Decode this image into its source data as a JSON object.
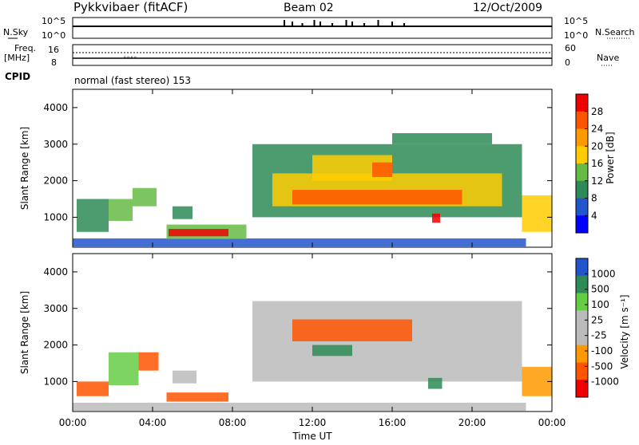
{
  "header": {
    "station": "Pykkvibaer (fitACF)",
    "beam": "Beam 02",
    "date": "12/Oct/2009"
  },
  "strip_labels": {
    "nsky": "N.Sky",
    "nsearch": "N.Search",
    "freq_line1": "Freq.",
    "freq_line2": "[MHz]",
    "nave": "Nave",
    "cpid": "CPID",
    "cpid_text": "normal (fast stereo) 153"
  },
  "noise_strip": {
    "left_ticks": [
      "10^5",
      "10^0"
    ],
    "right_ticks": [
      "10^5",
      "10^0"
    ],
    "spike_hours": [
      10.6,
      11.0,
      11.5,
      12.1,
      12.4,
      13.0,
      13.7,
      14.0,
      14.6,
      15.3,
      16.0,
      16.6
    ]
  },
  "freq_strip": {
    "left_ticks": [
      "16",
      "8"
    ],
    "right_ticks": [
      "60",
      "0"
    ]
  },
  "colors": {
    "axis": "#000000",
    "power_scale": [
      "#0000ff",
      "#2255cc",
      "#2e8b57",
      "#66bb44",
      "#ffcc00",
      "#ff9900",
      "#ff5500",
      "#ee0000"
    ],
    "velocity_scale": [
      "#ee0000",
      "#ff5500",
      "#ff9900",
      "#bbbbbb",
      "#bbbbbb",
      "#66cc44",
      "#2e8b57",
      "#2255cc"
    ]
  },
  "chart_data": [
    {
      "type": "heatmap",
      "panel": "power",
      "ylabel": "Slant Range [km]",
      "ylim": [
        180,
        4500
      ],
      "y_ticks": [
        "4000",
        "3000",
        "2000",
        "1000"
      ],
      "x_ticks": [
        "00:00",
        "04:00",
        "08:00",
        "12:00",
        "16:00",
        "20:00",
        "00:00"
      ],
      "colorbar_label": "Power [dB]",
      "colorbar_ticks": [
        "28",
        "24",
        "20",
        "16",
        "12",
        "8",
        "4"
      ],
      "colorbar_range": [
        0,
        32
      ],
      "echo_regions": [
        {
          "t0": 0.0,
          "t1": 22.7,
          "r0": 200,
          "r1": 420,
          "value": 5
        },
        {
          "t0": 0.2,
          "t1": 1.8,
          "r0": 600,
          "r1": 1500,
          "value": 9
        },
        {
          "t0": 1.8,
          "t1": 3.0,
          "r0": 900,
          "r1": 1500,
          "value": 14
        },
        {
          "t0": 3.0,
          "t1": 4.2,
          "r0": 1300,
          "r1": 1800,
          "value": 12
        },
        {
          "t0": 5.0,
          "t1": 6.0,
          "r0": 950,
          "r1": 1300,
          "value": 9
        },
        {
          "t0": 4.7,
          "t1": 8.7,
          "r0": 400,
          "r1": 800,
          "value": 14
        },
        {
          "t0": 4.8,
          "t1": 7.8,
          "r0": 480,
          "r1": 680,
          "value": 28
        },
        {
          "t0": 9.0,
          "t1": 22.5,
          "r0": 1000,
          "r1": 3000,
          "value": 10
        },
        {
          "t0": 10.0,
          "t1": 21.5,
          "r0": 1300,
          "r1": 2200,
          "value": 16
        },
        {
          "t0": 11.0,
          "t1": 19.5,
          "r0": 1350,
          "r1": 1750,
          "value": 24
        },
        {
          "t0": 12.0,
          "t1": 16.0,
          "r0": 2000,
          "r1": 2700,
          "value": 18
        },
        {
          "t0": 15.0,
          "t1": 16.0,
          "r0": 2100,
          "r1": 2500,
          "value": 26
        },
        {
          "t0": 16.0,
          "t1": 21.0,
          "r0": 3000,
          "r1": 3300,
          "value": 9
        },
        {
          "t0": 18.0,
          "t1": 18.4,
          "r0": 850,
          "r1": 1100,
          "value": 30
        },
        {
          "t0": 22.5,
          "t1": 24.0,
          "r0": 600,
          "r1": 1600,
          "value": 16
        }
      ]
    },
    {
      "type": "heatmap",
      "panel": "velocity",
      "ylabel": "Slant Range [km]",
      "xlabel": "Time UT",
      "ylim": [
        180,
        4500
      ],
      "y_ticks": [
        "4000",
        "3000",
        "2000",
        "1000"
      ],
      "x_ticks": [
        "00:00",
        "04:00",
        "08:00",
        "12:00",
        "16:00",
        "20:00",
        "00:00"
      ],
      "colorbar_label": "Velocity [m s⁻¹]",
      "colorbar_ticks": [
        "1000",
        "500",
        "100",
        "25",
        "-25",
        "-100",
        "-500",
        "-1000"
      ],
      "echo_regions": [
        {
          "t0": 0.0,
          "t1": 22.7,
          "r0": 200,
          "r1": 420,
          "value": 50
        },
        {
          "t0": 0.2,
          "t1": 1.8,
          "r0": 600,
          "r1": 1000,
          "value": -200
        },
        {
          "t0": 1.8,
          "t1": 3.3,
          "r0": 900,
          "r1": 1800,
          "value": 300
        },
        {
          "t0": 3.3,
          "t1": 4.3,
          "r0": 1300,
          "r1": 1800,
          "value": -150
        },
        {
          "t0": 5.0,
          "t1": 6.2,
          "r0": 950,
          "r1": 1300,
          "value": 0
        },
        {
          "t0": 4.7,
          "t1": 7.8,
          "r0": 450,
          "r1": 700,
          "value": -300
        },
        {
          "t0": 9.0,
          "t1": 22.5,
          "r0": 1000,
          "r1": 3200,
          "value": 0
        },
        {
          "t0": 11.0,
          "t1": 17.0,
          "r0": 2100,
          "r1": 2700,
          "value": -400
        },
        {
          "t0": 12.0,
          "t1": 14.0,
          "r0": 1700,
          "r1": 2000,
          "value": 600
        },
        {
          "t0": 17.8,
          "t1": 18.5,
          "r0": 800,
          "r1": 1100,
          "value": 600
        },
        {
          "t0": 22.5,
          "t1": 24.0,
          "r0": 600,
          "r1": 1400,
          "value": -100
        }
      ]
    }
  ]
}
